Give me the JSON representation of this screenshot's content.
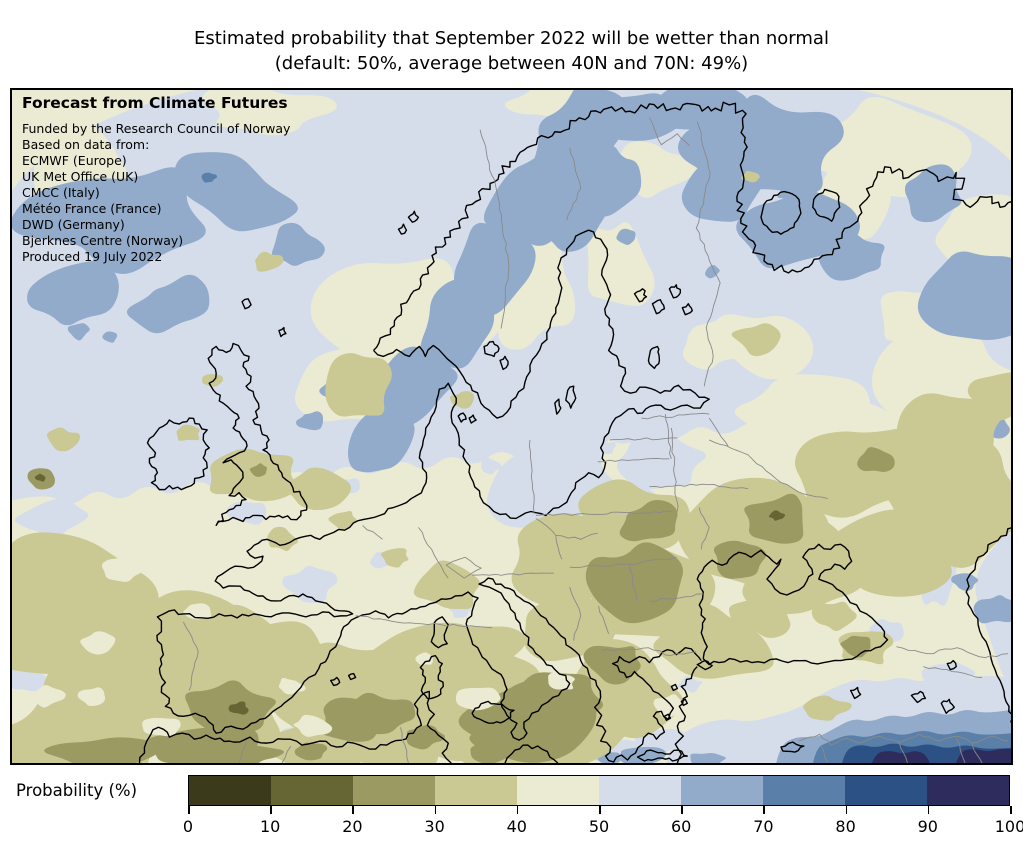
{
  "title": {
    "line1": "Estimated probability that September 2022 will be wetter than normal",
    "line2": "(default: 50%, average between 40N and 70N: 49%)"
  },
  "map": {
    "heading": "Forecast from Climate Futures",
    "credits": [
      "Funded by the Research Council of Norway",
      "Based on data from:",
      "ECMWF (Europe)",
      "UK Met Office (UK)",
      "CMCC (Italy)",
      "Météo France (France)",
      "DWD (Germany)",
      "Bjerknes Centre (Norway)",
      "Produced 19 July 2022"
    ]
  },
  "colorbar": {
    "label": "Probability (%)",
    "ticks": [
      "0",
      "10",
      "20",
      "30",
      "40",
      "50",
      "60",
      "70",
      "80",
      "90",
      "100"
    ],
    "colors": [
      "#3b3b1c",
      "#666635",
      "#9a9a62",
      "#cac893",
      "#ebebd3",
      "#d5ddeb",
      "#92abcb",
      "#5a7fa8",
      "#2c5185",
      "#2e2c5c"
    ],
    "coastline_color": "#000000",
    "border_color": "#8a8a8a"
  }
}
